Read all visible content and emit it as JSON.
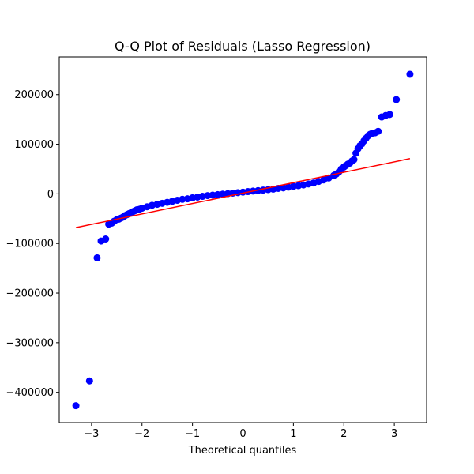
{
  "chart_data": {
    "type": "scatter",
    "title": "Q-Q Plot of Residuals (Lasso Regression)",
    "xlabel": "Theoretical quantiles",
    "ylabel": "",
    "xlim": [
      -3.64,
      3.64
    ],
    "ylim": [
      -461000,
      276000
    ],
    "xticks": [
      {
        "value": -3,
        "label": "−3"
      },
      {
        "value": -2,
        "label": "−2"
      },
      {
        "value": -1,
        "label": "−1"
      },
      {
        "value": 0,
        "label": "0"
      },
      {
        "value": 1,
        "label": "1"
      },
      {
        "value": 2,
        "label": "2"
      },
      {
        "value": 3,
        "label": "3"
      }
    ],
    "yticks": [
      {
        "value": -400000,
        "label": "−400000"
      },
      {
        "value": -300000,
        "label": "−300000"
      },
      {
        "value": -200000,
        "label": "−200000"
      },
      {
        "value": -100000,
        "label": "−100000"
      },
      {
        "value": 0,
        "label": "0"
      },
      {
        "value": 100000,
        "label": "100000"
      },
      {
        "value": 200000,
        "label": "200000"
      }
    ],
    "grid": false,
    "marker_color": "#0000ff",
    "line_color": "#ff0000",
    "reference_line": {
      "x": [
        -3.31,
        3.31
      ],
      "y": [
        -68000,
        71000
      ]
    },
    "points": {
      "x": [
        -3.31,
        -3.04,
        -2.89,
        -2.81,
        -2.72,
        -2.66,
        -2.6,
        -2.55,
        -2.5,
        -2.46,
        -2.42,
        -2.38,
        -2.34,
        -2.3,
        -2.26,
        -2.22,
        -2.18,
        -2.14,
        -2.1,
        -2.05,
        -2.0,
        -1.9,
        -1.8,
        -1.7,
        -1.6,
        -1.5,
        -1.4,
        -1.3,
        -1.2,
        -1.1,
        -1.0,
        -0.9,
        -0.8,
        -0.7,
        -0.6,
        -0.5,
        -0.4,
        -0.3,
        -0.2,
        -0.1,
        0.0,
        0.1,
        0.2,
        0.3,
        0.4,
        0.5,
        0.6,
        0.7,
        0.8,
        0.9,
        1.0,
        1.1,
        1.2,
        1.3,
        1.4,
        1.5,
        1.6,
        1.7,
        1.8,
        1.85,
        1.9,
        1.95,
        2.0,
        2.04,
        2.08,
        2.12,
        2.16,
        2.2,
        2.24,
        2.28,
        2.32,
        2.36,
        2.4,
        2.44,
        2.48,
        2.52,
        2.56,
        2.62,
        2.68,
        2.75,
        2.83,
        2.91,
        3.04,
        3.31
      ],
      "y": [
        -427000,
        -377000,
        -129000,
        -95000,
        -91000,
        -61000,
        -59000,
        -55000,
        -52000,
        -51000,
        -49000,
        -47000,
        -44000,
        -42000,
        -40000,
        -38000,
        -36000,
        -34000,
        -32000,
        -31000,
        -29000,
        -26000,
        -23000,
        -21000,
        -19000,
        -17000,
        -15000,
        -13000,
        -11000,
        -10000,
        -8000,
        -6500,
        -5000,
        -3500,
        -2500,
        -1500,
        -500,
        500,
        1500,
        2500,
        3500,
        4500,
        5500,
        6500,
        7500,
        8500,
        9500,
        11000,
        12000,
        13500,
        15000,
        16500,
        18000,
        20000,
        22000,
        25000,
        28000,
        32000,
        37000,
        40000,
        44000,
        50000,
        54000,
        57000,
        60000,
        62000,
        66000,
        69000,
        82000,
        91000,
        97000,
        101000,
        107000,
        112000,
        117000,
        120000,
        122000,
        123000,
        126000,
        155000,
        158000,
        160000,
        190000,
        241000
      ]
    }
  }
}
